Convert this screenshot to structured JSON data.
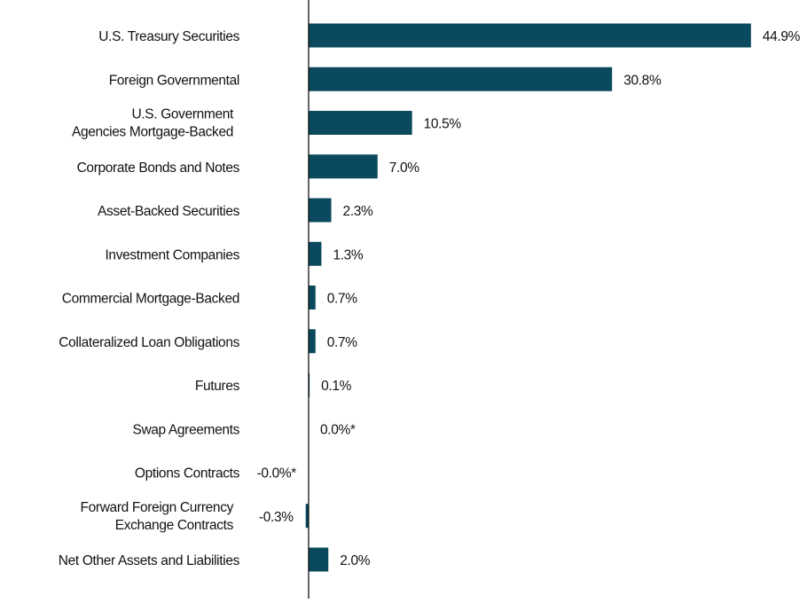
{
  "chart_data": {
    "type": "bar",
    "orientation": "horizontal",
    "title": "",
    "xlabel": "",
    "ylabel": "",
    "bar_color": "#0b4a5e",
    "grid": false,
    "categories": [
      [
        "U.S. Treasury Securities"
      ],
      [
        "Foreign Governmental"
      ],
      [
        "U.S. Government",
        "Agencies Mortgage-Backed"
      ],
      [
        "Corporate Bonds and Notes"
      ],
      [
        "Asset-Backed Securities"
      ],
      [
        "Investment Companies"
      ],
      [
        "Commercial Mortgage-Backed"
      ],
      [
        "Collateralized Loan Obligations"
      ],
      [
        "Futures"
      ],
      [
        "Swap Agreements"
      ],
      [
        "Options Contracts"
      ],
      [
        "Forward Foreign Currency",
        "Exchange Contracts"
      ],
      [
        "Net Other Assets and Liabilities"
      ]
    ],
    "values": [
      44.9,
      30.8,
      10.5,
      7.0,
      2.3,
      1.3,
      0.7,
      0.7,
      0.1,
      0.0,
      -0.0,
      -0.3,
      2.0
    ],
    "data_labels": [
      "44.9%",
      "30.8%",
      "10.5%",
      "7.0%",
      "2.3%",
      "1.3%",
      "0.7%",
      "0.7%",
      "0.1%",
      "0.0%*",
      "-0.0%*",
      "-0.3%",
      "2.0%"
    ]
  }
}
